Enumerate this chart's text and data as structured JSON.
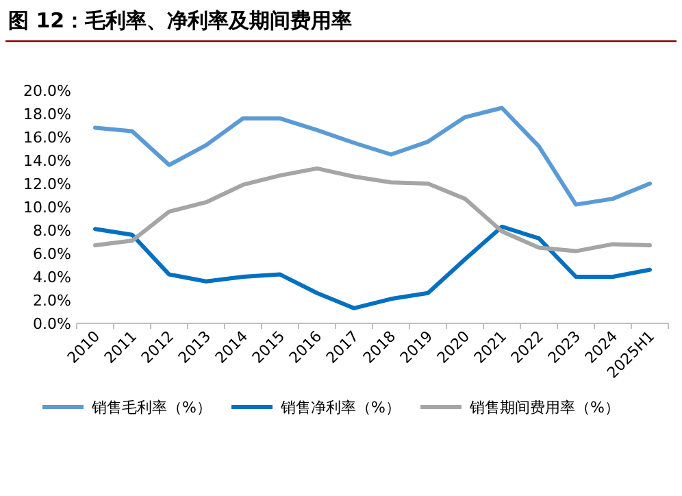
{
  "chart_data": {
    "type": "line",
    "title": "图 12：毛利率、净利率及期间费用率",
    "categories": [
      "2010",
      "2011",
      "2012",
      "2013",
      "2014",
      "2015",
      "2016",
      "2017",
      "2018",
      "2019",
      "2020",
      "2021",
      "2022",
      "2023",
      "2024",
      "2025H1"
    ],
    "series": [
      {
        "name": "销售毛利率（%）",
        "color": "#5b9bd5",
        "values": [
          16.8,
          16.5,
          13.6,
          15.3,
          17.6,
          17.6,
          16.6,
          15.5,
          14.5,
          15.6,
          17.7,
          18.5,
          15.2,
          10.2,
          10.7,
          12.0
        ]
      },
      {
        "name": "销售净利率（%）",
        "color": "#0070c0",
        "values": [
          8.1,
          7.6,
          4.2,
          3.6,
          4.0,
          4.2,
          2.6,
          1.3,
          2.1,
          2.6,
          5.5,
          8.3,
          7.3,
          4.0,
          4.0,
          4.6
        ]
      },
      {
        "name": "销售期间费用率（%）",
        "color": "#a5a5a5",
        "values": [
          6.7,
          7.1,
          9.6,
          10.4,
          11.9,
          12.7,
          13.3,
          12.6,
          12.1,
          12.0,
          10.7,
          7.9,
          6.5,
          6.2,
          6.8,
          6.7
        ]
      }
    ],
    "ylim": [
      0,
      20
    ],
    "yticks": [
      {
        "value": 0,
        "label": "0.0%"
      },
      {
        "value": 2,
        "label": "2.0%"
      },
      {
        "value": 4,
        "label": "4.0%"
      },
      {
        "value": 6,
        "label": "6.0%"
      },
      {
        "value": 8,
        "label": "8.0%"
      },
      {
        "value": 10,
        "label": "10.0%"
      },
      {
        "value": 12,
        "label": "12.0%"
      },
      {
        "value": 14,
        "label": "14.0%"
      },
      {
        "value": 16,
        "label": "16.0%"
      },
      {
        "value": 18,
        "label": "18.0%"
      },
      {
        "value": 20,
        "label": "20.0%"
      }
    ],
    "legend": "bottom"
  }
}
